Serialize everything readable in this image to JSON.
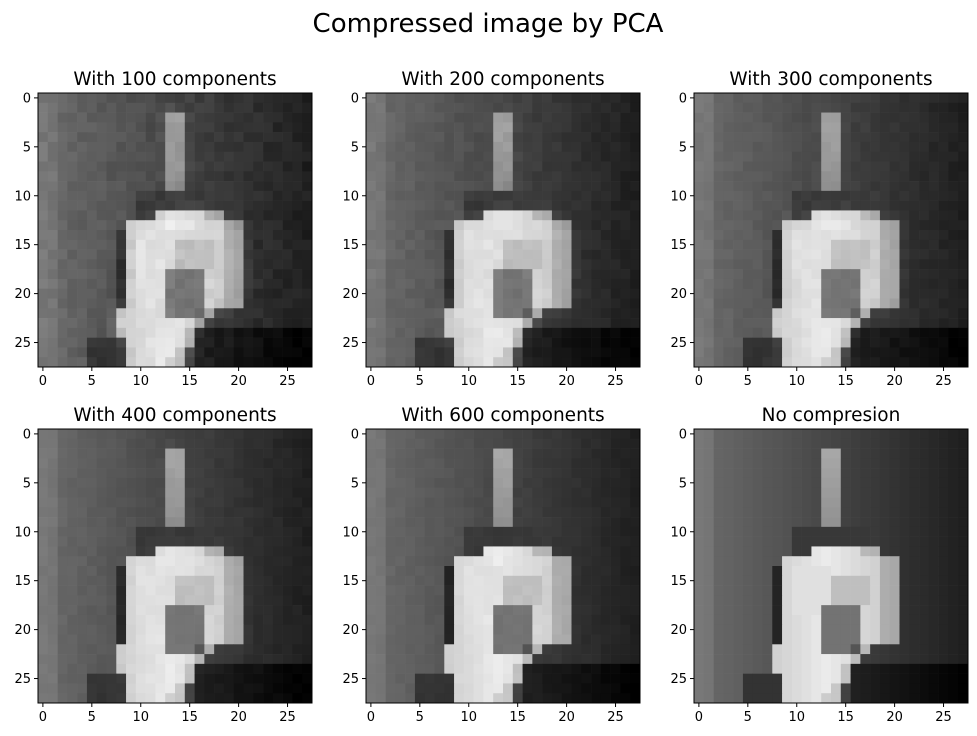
{
  "chart_data": {
    "type": "heatmap",
    "title": "Compressed image by PCA",
    "colormap": "gray",
    "image_shape": [
      28,
      28
    ],
    "xlim": [
      -0.5,
      27.5
    ],
    "ylim": [
      27.5,
      -0.5
    ],
    "x_ticks": [
      0,
      5,
      10,
      15,
      20,
      25
    ],
    "y_ticks": [
      0,
      5,
      10,
      15,
      20,
      25
    ],
    "panels": [
      {
        "title": "With 100 components",
        "n_components": 100
      },
      {
        "title": "With 200 components",
        "n_components": 200
      },
      {
        "title": "With 300 components",
        "n_components": 300
      },
      {
        "title": "With 400 components",
        "n_components": 400
      },
      {
        "title": "With 600 components",
        "n_components": 600
      },
      {
        "title": "No compresion",
        "n_components": null
      }
    ]
  }
}
